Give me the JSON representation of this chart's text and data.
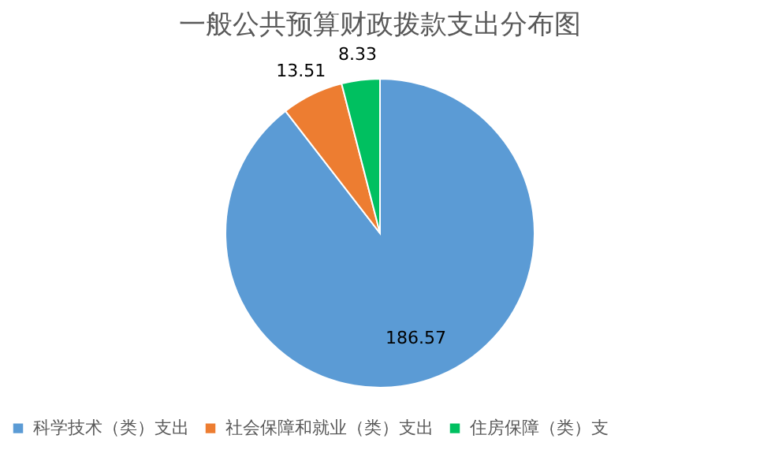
{
  "chart_data": {
    "type": "pie",
    "title": "一般公共预算财政拨款支出分布图",
    "categories": [
      "科学技术（类）支出",
      "社会保障和就业（类）支出",
      "住房保障（类）支"
    ],
    "values": [
      186.57,
      13.51,
      8.33
    ],
    "colors": [
      "#5b9bd5",
      "#ed7d31",
      "#00c060"
    ],
    "data_labels": true,
    "legend": "bottom"
  }
}
